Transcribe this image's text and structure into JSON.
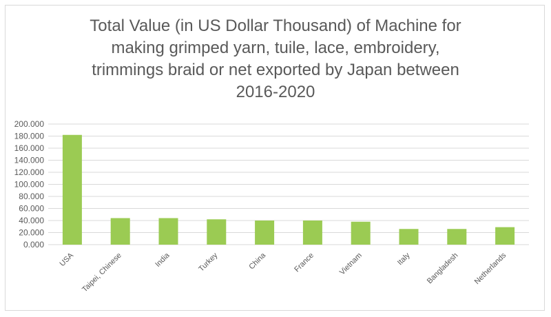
{
  "chart_data": {
    "type": "bar",
    "title_lines": [
      "Total Value (in US Dollar Thousand) of Machine for",
      "making grimped  yarn, tuile,  lace, embroidery,",
      "trimmings braid or net  exported by Japan between",
      "2016-2020"
    ],
    "categories": [
      "USA",
      "Taipei, Chinese",
      "India",
      "Turkey",
      "China",
      "France",
      "Vietnam",
      "Italy",
      "Bangladesh",
      "Netherlands"
    ],
    "values": [
      182000,
      44000,
      44000,
      42000,
      40000,
      40000,
      38000,
      26000,
      26000,
      29000
    ],
    "ylim": [
      0,
      200000
    ],
    "yticks": [
      0,
      20000,
      40000,
      60000,
      80000,
      100000,
      120000,
      140000,
      160000,
      180000,
      200000
    ],
    "ytick_labels": [
      "0.000",
      "20.000",
      "40.000",
      "60.000",
      "80.000",
      "100.000",
      "120.000",
      "140.000",
      "160.000",
      "180.000",
      "200.000"
    ],
    "grid": true,
    "legend": "none",
    "bar_color": "#9bcb53",
    "grid_color": "#d9d9d9",
    "text_color": "#595959"
  }
}
